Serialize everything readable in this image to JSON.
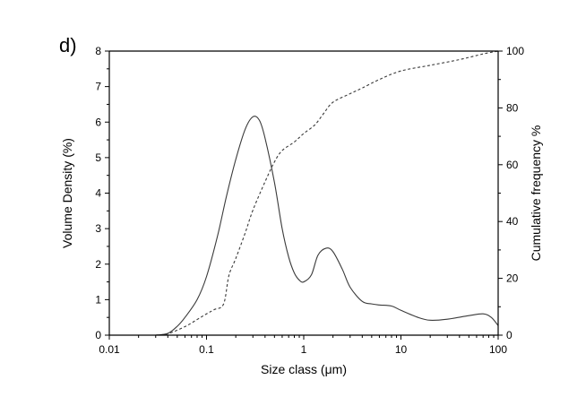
{
  "panel_label": "d)",
  "chart_data": {
    "type": "line",
    "xlabel": "Size class (μm)",
    "ylabel": "Volume Density (%)",
    "y2label": "Cumulative frequency %",
    "x_scale": "log",
    "xlim": [
      0.01,
      100
    ],
    "ylim": [
      0,
      8
    ],
    "y2lim": [
      0,
      100
    ],
    "x_ticks": [
      "0.01",
      "0.1",
      "1",
      "10",
      "100"
    ],
    "y_ticks": [
      "0",
      "1",
      "2",
      "3",
      "4",
      "5",
      "6",
      "7",
      "8"
    ],
    "y2_ticks": [
      "0",
      "20",
      "40",
      "60",
      "80",
      "100"
    ],
    "grid": false,
    "series": [
      {
        "axis": "left",
        "style": "solid",
        "color": "#3a3a3a",
        "x": [
          0.03,
          0.04,
          0.05,
          0.06,
          0.08,
          0.1,
          0.13,
          0.16,
          0.2,
          0.25,
          0.3,
          0.35,
          0.4,
          0.5,
          0.6,
          0.7,
          0.8,
          0.9,
          1.0,
          1.2,
          1.4,
          1.7,
          2.0,
          2.5,
          3,
          4,
          5,
          6,
          8,
          10,
          15,
          20,
          30,
          50,
          70,
          85,
          100
        ],
        "y": [
          0.0,
          0.05,
          0.25,
          0.5,
          1.0,
          1.65,
          2.8,
          3.9,
          4.95,
          5.8,
          6.15,
          6.05,
          5.55,
          4.3,
          3.0,
          2.2,
          1.75,
          1.55,
          1.5,
          1.7,
          2.25,
          2.45,
          2.35,
          1.85,
          1.35,
          0.95,
          0.88,
          0.85,
          0.82,
          0.7,
          0.5,
          0.42,
          0.45,
          0.55,
          0.6,
          0.5,
          0.27
        ]
      },
      {
        "axis": "right",
        "style": "dashed",
        "color": "#3a3a3a",
        "x": [
          0.03,
          0.04,
          0.06,
          0.08,
          0.1,
          0.12,
          0.15,
          0.17,
          0.2,
          0.25,
          0.3,
          0.4,
          0.5,
          0.6,
          0.8,
          1.0,
          1.3,
          1.6,
          2.0,
          3.0,
          4.0,
          6.0,
          10,
          20,
          40,
          70,
          100
        ],
        "y": [
          0,
          0.5,
          3,
          5.5,
          7.5,
          9,
          11,
          21,
          27,
          36,
          44,
          54,
          61,
          65,
          68,
          71,
          74,
          78,
          82,
          85,
          87,
          90,
          93,
          95,
          97,
          99,
          100
        ]
      }
    ]
  }
}
